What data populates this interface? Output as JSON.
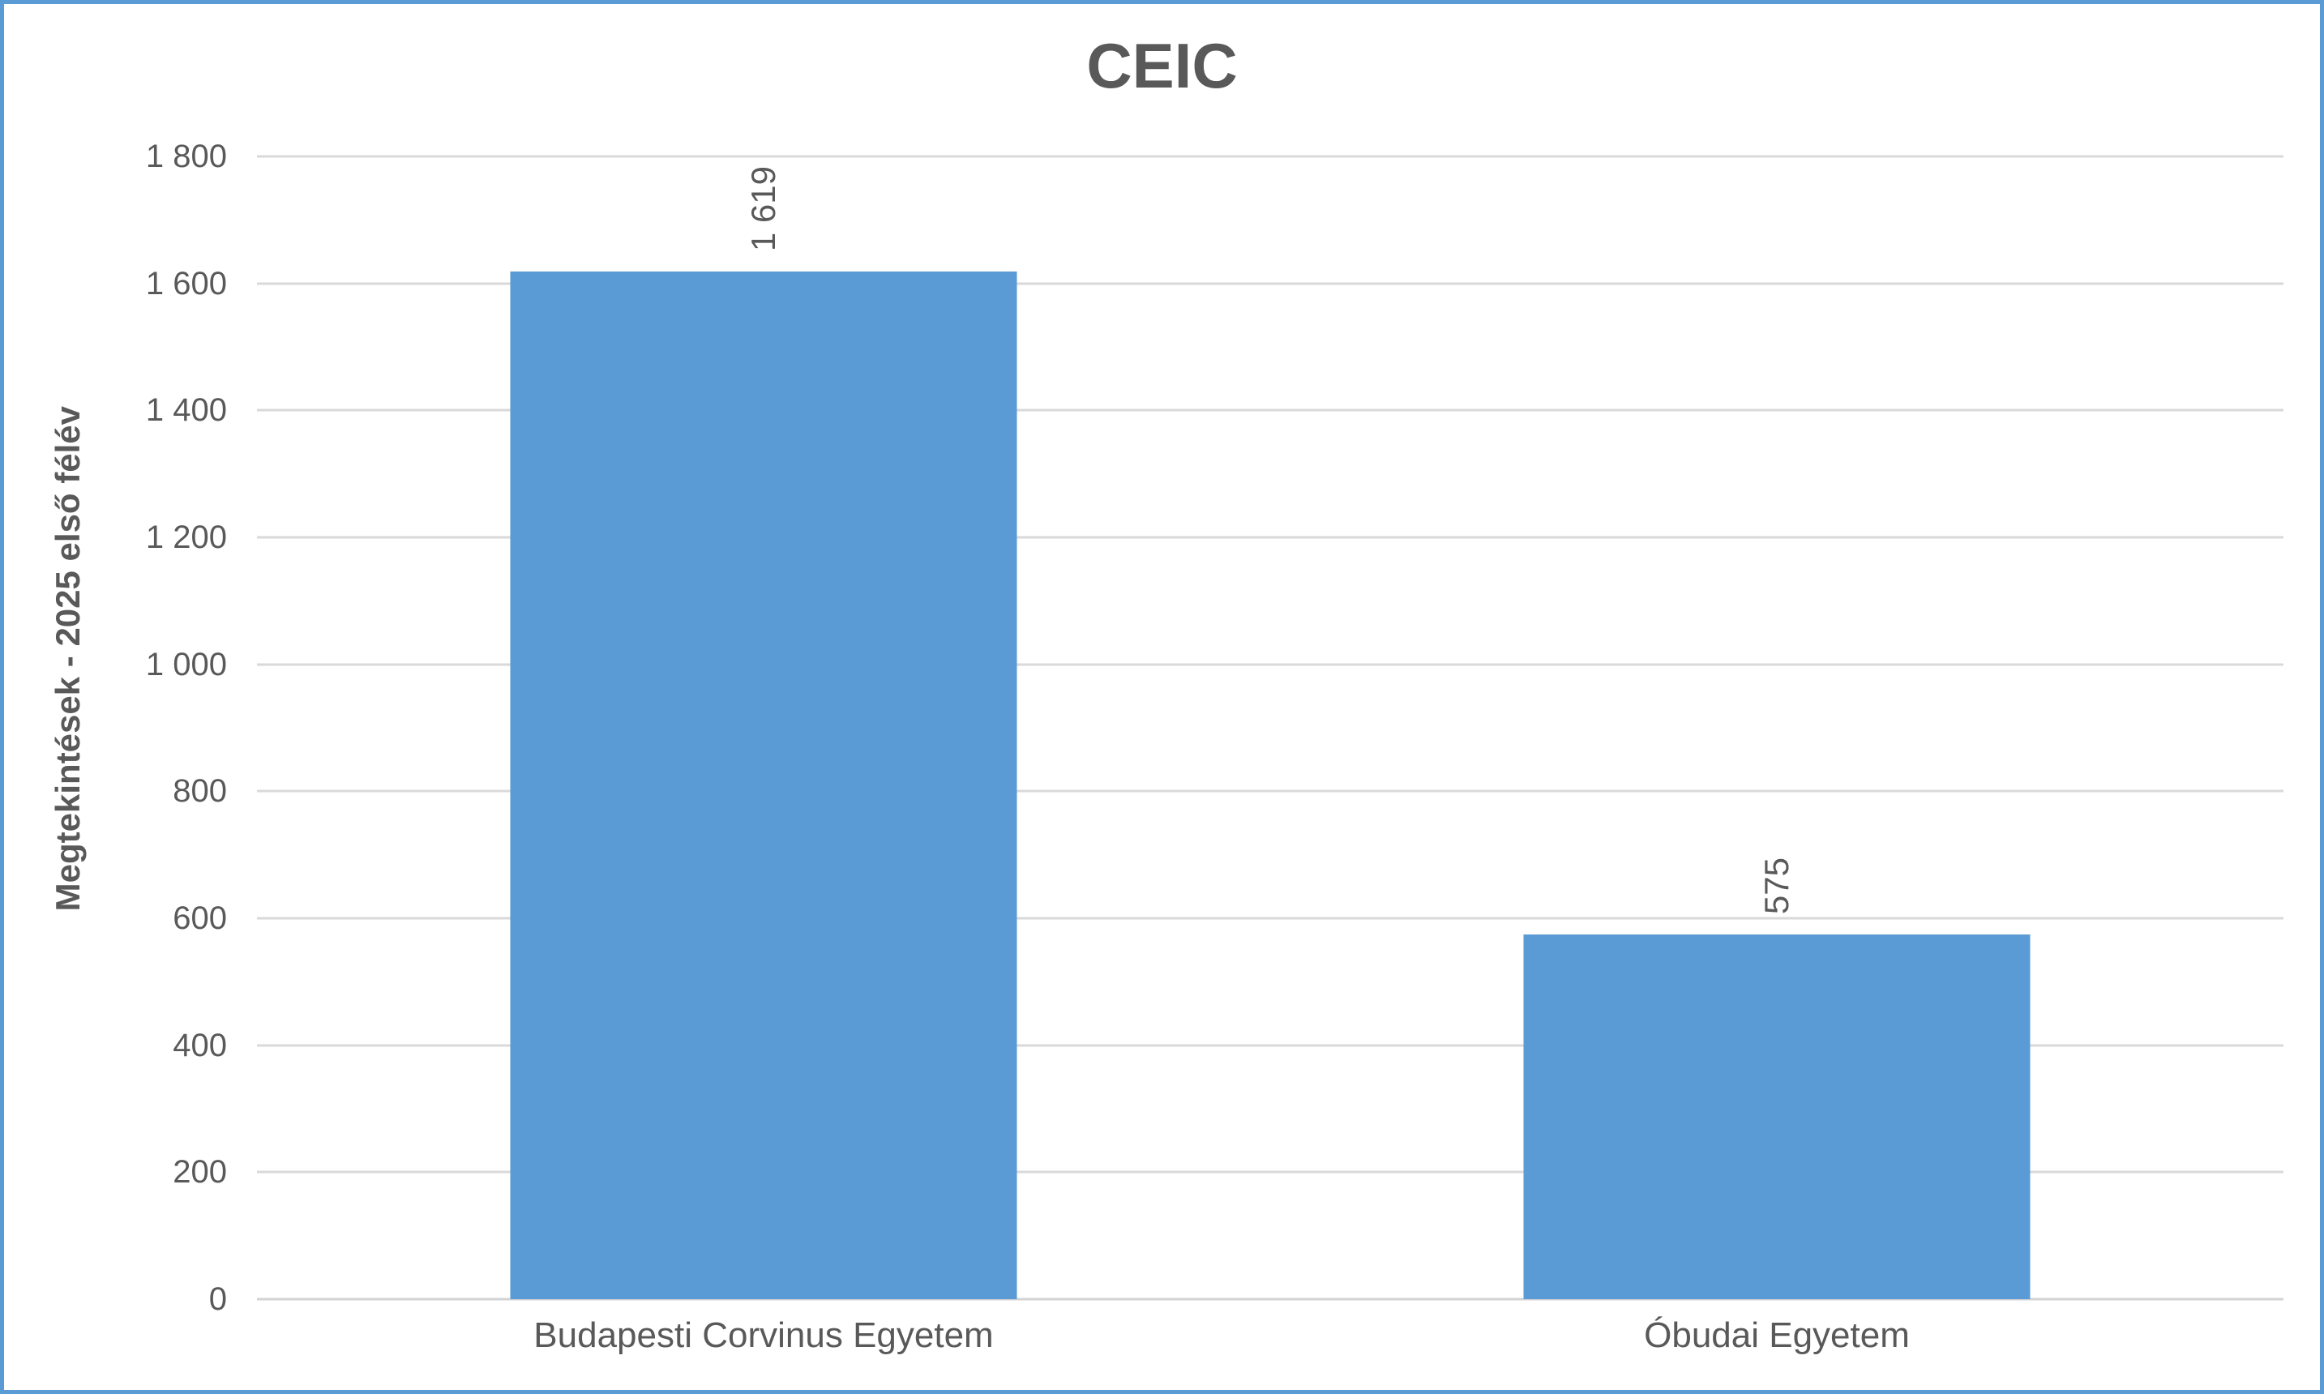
{
  "chart_data": {
    "type": "bar",
    "title": "CEIC",
    "categories": [
      "Budapesti Corvinus Egyetem",
      "Óbudai Egyetem"
    ],
    "values": [
      1619,
      575
    ],
    "value_labels": [
      "1 619",
      "575"
    ],
    "xlabel": "",
    "ylabel": "Megtekintések - 2025 első félév",
    "ylim": [
      0,
      1800
    ],
    "ytick_interval": 200,
    "yticks": [
      0,
      200,
      400,
      600,
      800,
      1000,
      1200,
      1400,
      1600,
      1800
    ],
    "ytick_labels": [
      "0",
      "200",
      "400",
      "600",
      "800",
      "1 000",
      "1 200",
      "1 400",
      "1 600",
      "1 800"
    ],
    "grid": true,
    "legend": false,
    "bar_gap_ratio": 1.0,
    "value_label_rotation": "vertical-bottom-to-top",
    "colors": {
      "bar": "#5B9BD5",
      "border": "#5B9BD5",
      "grid": "#D9D9D9",
      "axis": "#D3D3D3",
      "text": "#595959",
      "title": "#595959",
      "background": "#FFFFFF"
    }
  }
}
